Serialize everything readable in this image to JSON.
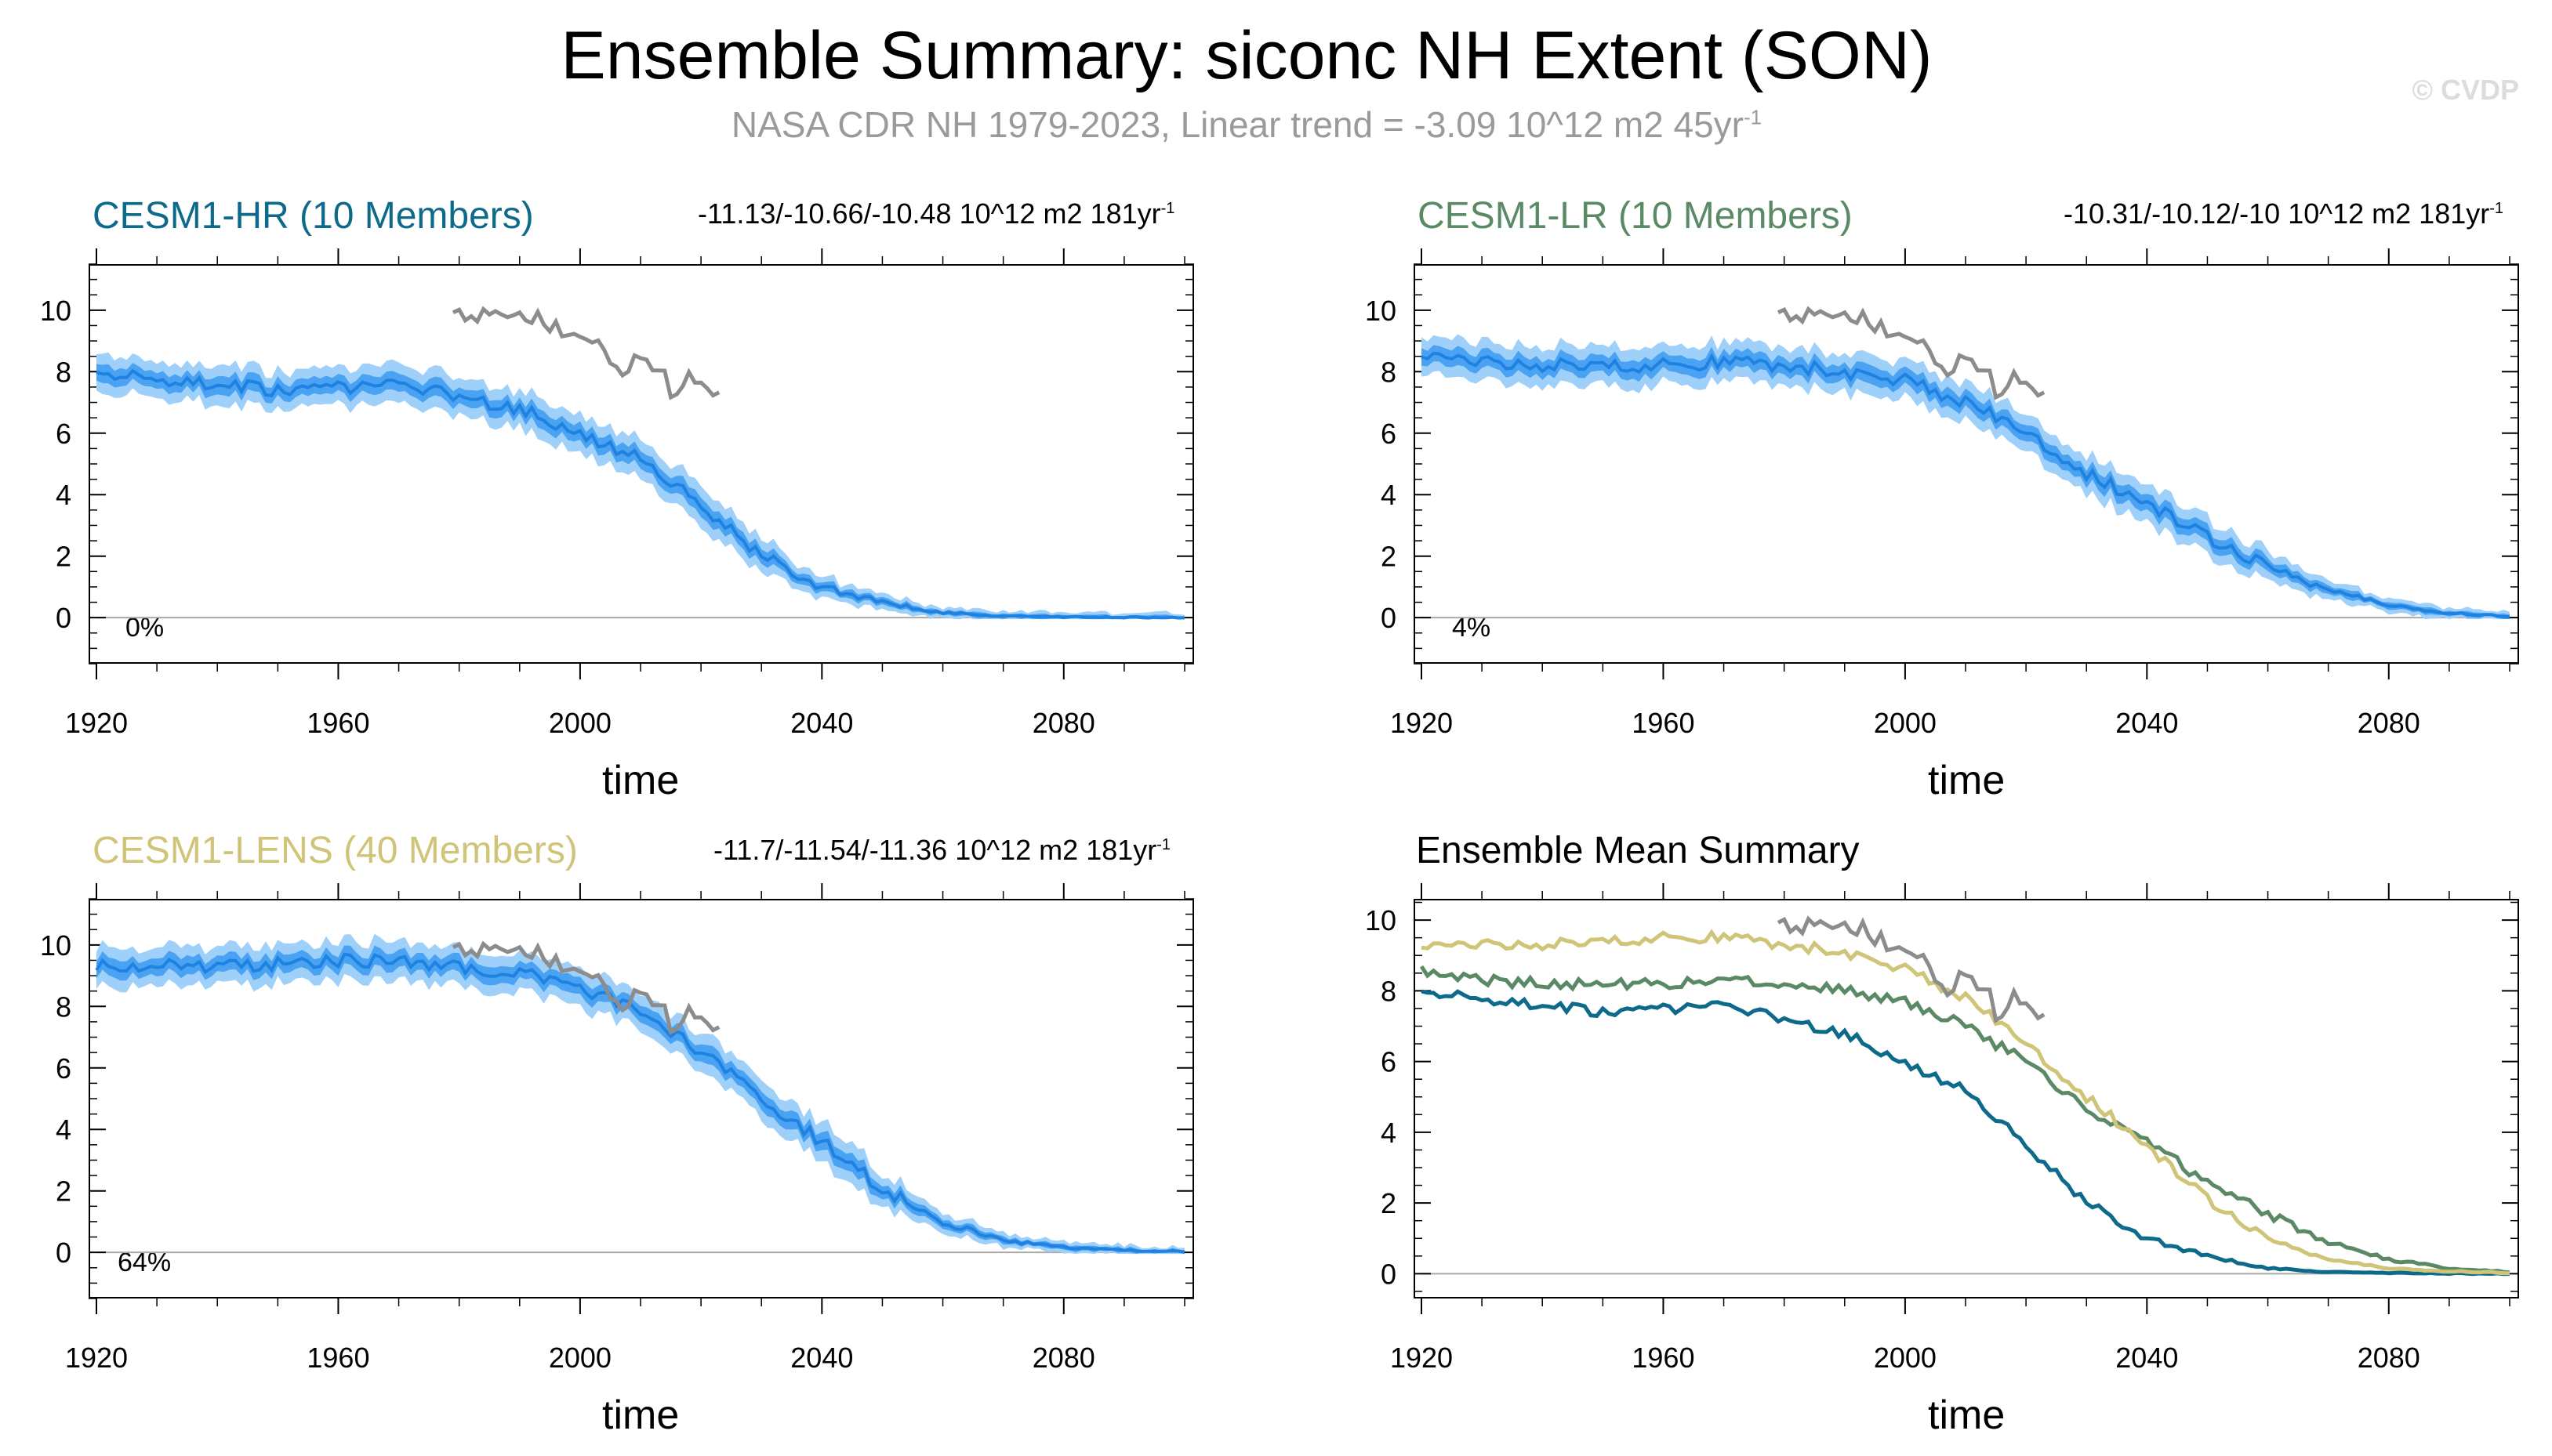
{
  "title": "Ensemble Summary: siconc NH Extent (SON)",
  "subtitle_main": "NASA CDR NH 1979-2023, Linear trend = -3.09 10^12 m2 45yr",
  "subtitle_sup": "-1",
  "watermark": "© CVDP",
  "colors": {
    "hr": "#0e6a8a",
    "lr": "#5a8a65",
    "lens": "#cfc477",
    "band_outer": "#9fd0fa",
    "band_inner": "#4aa3f2",
    "mean": "#1f82e0",
    "obs": "#8c8c8c"
  },
  "chart_data": [
    {
      "type": "line",
      "title": "CESM1-HR (10 Members)",
      "trend_main": "-11.13/-10.66/-10.48 10^12 m2 181yr",
      "trend_sup": "-1",
      "percent": "0%",
      "xlabel": "time",
      "xlim": [
        1920,
        2100
      ],
      "ylim": [
        -1.5,
        11.5
      ],
      "xticks": [
        "1920",
        "1960",
        "2000",
        "2040",
        "2080"
      ],
      "yticks": [
        "0",
        "2",
        "4",
        "6",
        "8",
        "10"
      ],
      "series": [
        {
          "name": "ensemble-mean",
          "x": [
            1920,
            1930,
            1940,
            1950,
            1960,
            1970,
            1980,
            1990,
            2000,
            2010,
            2020,
            2030,
            2040,
            2050,
            2060,
            2070,
            2080,
            2090,
            2100
          ],
          "values": [
            8.0,
            7.8,
            7.6,
            7.4,
            7.5,
            7.6,
            7.2,
            6.8,
            5.9,
            5.2,
            3.6,
            2.0,
            1.0,
            0.5,
            0.15,
            0.05,
            0.02,
            0.01,
            0.0
          ]
        },
        {
          "name": "NASA CDR",
          "x": [
            1979,
            1983,
            1987,
            1991,
            1995,
            1999,
            2003,
            2007,
            2011,
            2015,
            2019,
            2023
          ],
          "values": [
            9.6,
            9.9,
            9.7,
            9.8,
            9.4,
            9.2,
            8.8,
            8.1,
            8.6,
            7.4,
            7.8,
            7.5
          ]
        }
      ]
    },
    {
      "type": "line",
      "title": "CESM1-LR (10 Members)",
      "trend_main": "-10.31/-10.12/-10 10^12 m2 181yr",
      "trend_sup": "-1",
      "percent": "4%",
      "xlabel": "time",
      "xlim": [
        1920,
        2100
      ],
      "ylim": [
        -1.5,
        11.5
      ],
      "xticks": [
        "1920",
        "1960",
        "2000",
        "2040",
        "2080"
      ],
      "yticks": [
        "0",
        "2",
        "4",
        "6",
        "8",
        "10"
      ],
      "series": [
        {
          "name": "ensemble-mean",
          "x": [
            1920,
            1930,
            1940,
            1950,
            1960,
            1970,
            1980,
            1990,
            2000,
            2010,
            2020,
            2030,
            2040,
            2050,
            2060,
            2070,
            2080,
            2090,
            2100
          ],
          "values": [
            8.6,
            8.3,
            8.2,
            8.2,
            8.2,
            8.3,
            8.2,
            8.0,
            7.7,
            7.0,
            6.0,
            4.7,
            3.7,
            2.6,
            1.7,
            0.9,
            0.4,
            0.15,
            0.05
          ]
        },
        {
          "name": "NASA CDR",
          "x": [
            1979,
            1983,
            1987,
            1991,
            1995,
            1999,
            2003,
            2007,
            2011,
            2015,
            2019,
            2023
          ],
          "values": [
            9.6,
            9.9,
            9.7,
            9.8,
            9.4,
            9.2,
            8.8,
            8.1,
            8.6,
            7.4,
            7.8,
            7.5
          ]
        }
      ]
    },
    {
      "type": "line",
      "title": "CESM1-LENS (40 Members)",
      "trend_main": "-11.7/-11.54/-11.36 10^12 m2 181yr",
      "trend_sup": "-1",
      "percent": "64%",
      "xlabel": "time",
      "xlim": [
        1920,
        2100
      ],
      "ylim": [
        -1.5,
        11.5
      ],
      "xticks": [
        "1920",
        "1960",
        "2000",
        "2040",
        "2080"
      ],
      "yticks": [
        "0",
        "2",
        "4",
        "6",
        "8",
        "10"
      ],
      "series": [
        {
          "name": "ensemble-mean",
          "x": [
            1920,
            1930,
            1940,
            1950,
            1960,
            1970,
            1980,
            1990,
            2000,
            2010,
            2020,
            2030,
            2040,
            2050,
            2060,
            2070,
            2080,
            2090,
            2100
          ],
          "values": [
            9.3,
            9.3,
            9.3,
            9.4,
            9.5,
            9.5,
            9.3,
            9.1,
            8.6,
            7.8,
            6.5,
            5.0,
            3.6,
            2.1,
            1.0,
            0.4,
            0.15,
            0.07,
            0.03
          ]
        },
        {
          "name": "NASA CDR",
          "x": [
            1979,
            1983,
            1987,
            1991,
            1995,
            1999,
            2003,
            2007,
            2011,
            2015,
            2019,
            2023
          ],
          "values": [
            9.6,
            9.9,
            9.7,
            9.8,
            9.4,
            9.2,
            8.8,
            8.1,
            8.6,
            7.4,
            7.8,
            7.5
          ]
        }
      ]
    },
    {
      "type": "line",
      "title": "Ensemble Mean Summary",
      "xlabel": "time",
      "xlim": [
        1920,
        2100
      ],
      "ylim": [
        -0.7,
        10.6
      ],
      "xticks": [
        "1920",
        "1960",
        "2000",
        "2040",
        "2080"
      ],
      "yticks": [
        "0",
        "2",
        "4",
        "6",
        "8",
        "10"
      ],
      "series": [
        {
          "name": "CESM1-HR",
          "x": [
            1920,
            1930,
            1940,
            1950,
            1960,
            1970,
            1980,
            1990,
            2000,
            2010,
            2020,
            2030,
            2040,
            2050,
            2060,
            2070,
            2080,
            2090,
            2100
          ],
          "values": [
            8.0,
            7.8,
            7.6,
            7.4,
            7.5,
            7.6,
            7.2,
            6.8,
            5.9,
            5.2,
            3.6,
            2.0,
            1.0,
            0.5,
            0.15,
            0.05,
            0.02,
            0.01,
            0.0
          ]
        },
        {
          "name": "CESM1-LR",
          "x": [
            1920,
            1930,
            1940,
            1950,
            1960,
            1970,
            1980,
            1990,
            2000,
            2010,
            2020,
            2030,
            2040,
            2050,
            2060,
            2070,
            2080,
            2090,
            2100
          ],
          "values": [
            8.6,
            8.3,
            8.2,
            8.2,
            8.2,
            8.3,
            8.2,
            8.0,
            7.7,
            7.0,
            6.0,
            4.7,
            3.7,
            2.6,
            1.7,
            0.9,
            0.4,
            0.15,
            0.05
          ]
        },
        {
          "name": "CESM1-LENS",
          "x": [
            1920,
            1930,
            1940,
            1950,
            1960,
            1970,
            1980,
            1990,
            2000,
            2010,
            2020,
            2030,
            2040,
            2050,
            2060,
            2070,
            2080,
            2090,
            2100
          ],
          "values": [
            9.3,
            9.3,
            9.3,
            9.4,
            9.5,
            9.5,
            9.3,
            9.1,
            8.6,
            7.8,
            6.5,
            5.0,
            3.6,
            2.1,
            1.0,
            0.4,
            0.15,
            0.07,
            0.03
          ]
        },
        {
          "name": "NASA CDR",
          "x": [
            1979,
            1983,
            1987,
            1991,
            1995,
            1999,
            2003,
            2007,
            2011,
            2015,
            2019,
            2023
          ],
          "values": [
            9.6,
            9.9,
            9.7,
            9.8,
            9.4,
            9.2,
            8.8,
            8.1,
            8.6,
            7.4,
            7.8,
            7.5
          ]
        }
      ]
    }
  ]
}
